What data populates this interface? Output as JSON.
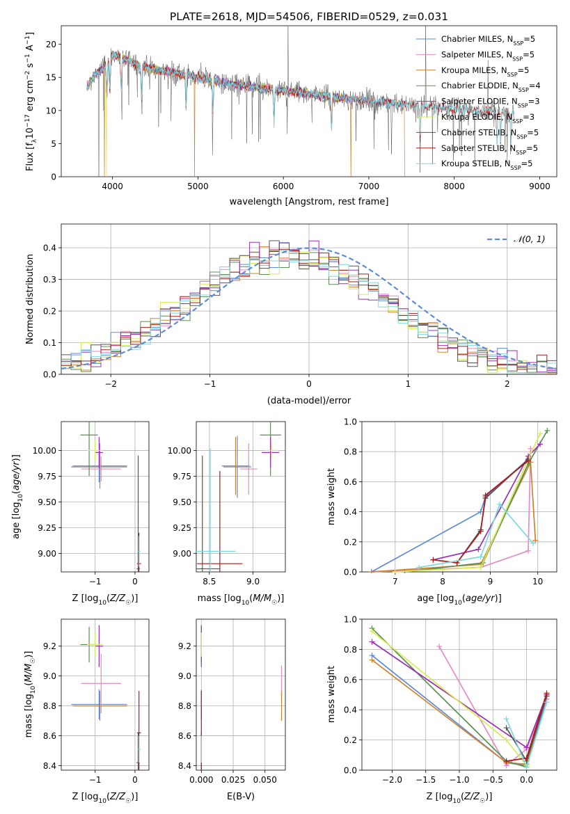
{
  "colors": {
    "Chabrier MILES": "#5b8bd9",
    "Salpeter MILES": "#e78ac3",
    "Kroupa MILES": "#d4822a",
    "Chabrier ELODIE": "#5a8f52",
    "Salpeter ELODIE": "#9a2fb5",
    "Kroupa ELODIE": "#d6ec52",
    "Chabrier STELIB": "#555555",
    "Salpeter STELIB": "#b01818",
    "Kroupa STELIB": "#7fd8dd"
  },
  "chart_data": [
    {
      "id": "spectrum",
      "type": "line",
      "title": "PLATE=2618, MJD=54506, FIBERID=0529, z=0.031",
      "xlabel": "wavelength [Angstrom, rest frame]",
      "ylabel": "Flux [f",
      "ylabel_full": "Flux [fλ10⁻¹⁷ erg cm⁻² s⁻¹ A⁻¹]",
      "xlim": [
        3400,
        9200
      ],
      "ylim": [
        0,
        22.8
      ],
      "xticks": [
        4000,
        5000,
        6000,
        7000,
        8000,
        9000
      ],
      "yticks": [
        0,
        5,
        10,
        15,
        20
      ],
      "legend_position": "top-right",
      "legend": [
        {
          "name": "Chabrier MILES, N",
          "sub": "SSP",
          "suffix": "=5",
          "model": "Chabrier MILES"
        },
        {
          "name": "Salpeter MILES, N",
          "sub": "SSP",
          "suffix": "=5",
          "model": "Salpeter MILES"
        },
        {
          "name": "Kroupa MILES, N",
          "sub": "SSP",
          "suffix": "=5",
          "model": "Kroupa MILES"
        },
        {
          "name": "Chabrier ELODIE, N",
          "sub": "SSP",
          "suffix": "=4",
          "model": "Chabrier ELODIE"
        },
        {
          "name": "Salpeter ELODIE, N",
          "sub": "SSP",
          "suffix": "=3",
          "model": "Salpeter ELODIE"
        },
        {
          "name": "Kroupa ELODIE, N",
          "sub": "SSP",
          "suffix": "=3",
          "model": "Kroupa ELODIE"
        },
        {
          "name": "Chabrier STELIB, N",
          "sub": "SSP",
          "suffix": "=5",
          "model": "Chabrier STELIB"
        },
        {
          "name": "Salpeter STELIB, N",
          "sub": "SSP",
          "suffix": "=5",
          "model": "Salpeter STELIB"
        },
        {
          "name": "Kroupa STELIB, N",
          "sub": "SSP",
          "suffix": "=5",
          "model": "Kroupa STELIB"
        }
      ],
      "continuum": {
        "x": [
          3700,
          3800,
          3900,
          4000,
          4100,
          4300,
          4500,
          4800,
          5000,
          5300,
          5600,
          6000,
          6300,
          6600,
          7000,
          7400,
          7800,
          8200,
          8600,
          9000,
          9200
        ],
        "y": [
          13.5,
          15.5,
          16.5,
          18.5,
          18.0,
          16.8,
          16.2,
          15.5,
          15.0,
          14.2,
          13.6,
          13.0,
          12.5,
          12.0,
          11.5,
          11.0,
          10.5,
          10.0,
          9.8,
          9.5,
          9.3
        ]
      },
      "absorption_lines": [
        3934,
        3969,
        4102,
        4340,
        4861,
        5175,
        5890,
        6563,
        7600,
        8500,
        8542,
        8662
      ],
      "mask_gaps": [
        {
          "x": 3905,
          "model": "Kroupa MILES"
        },
        {
          "x": 4960,
          "model": "Kroupa MILES"
        },
        {
          "x": 6790,
          "model": "Kroupa MILES"
        },
        {
          "x": 7420,
          "model": "Kroupa MILES"
        },
        {
          "x": 3840,
          "model": "Chabrier STELIB"
        },
        {
          "x": 3930,
          "model": "Kroupa ELODIE"
        }
      ]
    },
    {
      "id": "residuals",
      "type": "histogram",
      "xlabel": "(data-model)/error",
      "ylabel": "Normed distribution",
      "xlim": [
        -2.5,
        2.5
      ],
      "ylim": [
        0,
        0.475
      ],
      "xticks": [
        -2,
        -1,
        0,
        1,
        2
      ],
      "yticks": [
        0.0,
        0.1,
        0.2,
        0.3,
        0.4
      ],
      "legend_position": "top-right",
      "normal_curve_label": "𝒩(0, 1)",
      "bin_edges_start": -2.5,
      "bin_width": 0.1
    },
    {
      "id": "age-vs-Z",
      "type": "scatter",
      "xlabel": "Z [log",
      "xlabel_full": "Z [log10(Z/Z☉)]",
      "ylabel_full": "age  [log10(age/yr)]",
      "xlim": [
        -1.85,
        0.35
      ],
      "ylim": [
        8.82,
        10.28
      ],
      "xticks": [
        -1,
        0
      ],
      "yticks": [
        9.0,
        9.25,
        9.5,
        9.75,
        10.0
      ]
    },
    {
      "id": "age-vs-mass",
      "type": "scatter",
      "xlabel_full": "mass [log10(M/M☉)]",
      "xlim": [
        8.35,
        9.37
      ],
      "ylim": [
        8.82,
        10.28
      ],
      "xticks": [
        8.5,
        9.0
      ],
      "yticks": [
        9.0,
        9.25,
        9.5,
        9.75,
        10.0
      ]
    },
    {
      "id": "massweight-vs-age",
      "type": "line",
      "xlabel_full": "age  [log10(age/yr)]",
      "ylabel": "mass weight",
      "xlim": [
        6.3,
        10.4
      ],
      "ylim": [
        0,
        1.0
      ],
      "xticks": [
        7,
        8,
        9,
        10
      ],
      "yticks": [
        0.0,
        0.2,
        0.4,
        0.6,
        0.8,
        1.0
      ],
      "series": [
        {
          "model": "Chabrier MILES",
          "x": [
            6.5,
            8.8,
            8.9,
            9.8
          ],
          "y": [
            0.0,
            0.4,
            0.5,
            0.75
          ]
        },
        {
          "model": "Salpeter MILES",
          "x": [
            6.5,
            8.8,
            9.8,
            9.85
          ],
          "y": [
            0.0,
            0.03,
            0.14,
            0.82
          ]
        },
        {
          "model": "Kroupa MILES",
          "x": [
            6.5,
            8.8,
            9.85,
            9.95
          ],
          "y": [
            0.0,
            0.05,
            0.73,
            0.21
          ]
        },
        {
          "model": "Chabrier ELODIE",
          "x": [
            7.2,
            8.85,
            9.8,
            10.2
          ],
          "y": [
            0.0,
            0.06,
            0.72,
            0.94
          ]
        },
        {
          "model": "Salpeter ELODIE",
          "x": [
            7.8,
            8.75,
            9.8,
            10.05
          ],
          "y": [
            0.08,
            0.15,
            0.77,
            0.85
          ]
        },
        {
          "model": "Kroupa ELODIE",
          "x": [
            7.0,
            8.8,
            9.8,
            10.05
          ],
          "y": [
            0.0,
            0.03,
            0.75,
            0.92
          ]
        },
        {
          "model": "Chabrier STELIB",
          "x": [
            8.3,
            8.8,
            8.9,
            9.8
          ],
          "y": [
            0.06,
            0.28,
            0.49,
            0.75
          ]
        },
        {
          "model": "Salpeter STELIB",
          "x": [
            7.8,
            8.3,
            8.8,
            8.9,
            9.8
          ],
          "y": [
            0.08,
            0.06,
            0.27,
            0.51,
            0.74
          ]
        },
        {
          "model": "Kroupa STELIB",
          "x": [
            7.5,
            8.8,
            9.2,
            9.9
          ],
          "y": [
            0.03,
            0.1,
            0.45,
            0.19
          ]
        }
      ]
    },
    {
      "id": "mass-vs-Z",
      "type": "scatter",
      "xlabel_full": "Z [log10(Z/Z☉)]",
      "ylabel_full": "mass [log10(M/M☉)]",
      "xlim": [
        -1.85,
        0.35
      ],
      "ylim": [
        8.37,
        9.38
      ],
      "xticks": [
        -1,
        0
      ],
      "yticks": [
        8.4,
        8.6,
        8.8,
        9.0,
        9.2
      ]
    },
    {
      "id": "mass-vs-EBV",
      "type": "scatter",
      "xlabel": "E(B-V)",
      "xlim": [
        -0.004,
        0.066
      ],
      "ylim": [
        8.37,
        9.38
      ],
      "xticks": [
        0.0,
        0.025,
        0.05
      ],
      "xticklabels": [
        "0.000",
        "0.025",
        "0.050"
      ],
      "yticks": [
        8.4,
        8.6,
        8.8,
        9.0,
        9.2
      ]
    },
    {
      "id": "massweight-vs-Z",
      "type": "line",
      "xlabel_full": "Z [log10(Z/Z☉)]",
      "ylabel": "mass weight",
      "xlim": [
        -2.45,
        0.45
      ],
      "ylim": [
        0,
        1.0
      ],
      "xticks": [
        -2.0,
        -1.5,
        -1.0,
        -0.5,
        0.0
      ],
      "yticks": [
        0.0,
        0.2,
        0.4,
        0.6,
        0.8,
        1.0
      ],
      "series": [
        {
          "model": "Chabrier MILES",
          "x": [
            -2.3,
            -0.3,
            0.0,
            0.3
          ],
          "y": [
            0.76,
            0.05,
            0.03,
            0.47
          ]
        },
        {
          "model": "Salpeter MILES",
          "x": [
            -1.3,
            -0.3,
            0.0,
            0.3
          ],
          "y": [
            0.82,
            0.03,
            0.14,
            0.47
          ]
        },
        {
          "model": "Kroupa MILES",
          "x": [
            -2.3,
            -0.3,
            0.0,
            0.3
          ],
          "y": [
            0.73,
            0.05,
            0.04,
            0.5
          ]
        },
        {
          "model": "Chabrier ELODIE",
          "x": [
            -2.3,
            -0.3,
            0.0
          ],
          "y": [
            0.94,
            0.06,
            0.02
          ]
        },
        {
          "model": "Salpeter ELODIE",
          "x": [
            -2.3,
            0.0,
            0.3
          ],
          "y": [
            0.85,
            0.15,
            0.5
          ]
        },
        {
          "model": "Kroupa ELODIE",
          "x": [
            -2.3,
            -0.3,
            0.0
          ],
          "y": [
            0.92,
            0.2,
            0.03
          ]
        },
        {
          "model": "Chabrier STELIB",
          "x": [
            -0.3,
            0.0,
            0.3
          ],
          "y": [
            0.28,
            0.06,
            0.49
          ]
        },
        {
          "model": "Salpeter STELIB",
          "x": [
            -0.3,
            0.0,
            0.3
          ],
          "y": [
            0.06,
            0.08,
            0.51
          ]
        },
        {
          "model": "Kroupa STELIB",
          "x": [
            -0.3,
            0.0,
            0.3
          ],
          "y": [
            0.34,
            0.02,
            0.45
          ]
        }
      ]
    }
  ],
  "errorbars": {
    "ageZ": [
      {
        "model": "Chabrier MILES",
        "x": -0.9,
        "xe": 0.7,
        "y": 9.84,
        "ye": 0.15
      },
      {
        "model": "Salpeter MILES",
        "x": -0.85,
        "xe": 0.5,
        "y": 9.82,
        "ye": 0.12
      },
      {
        "model": "Kroupa MILES",
        "x": -0.88,
        "xe": 0.68,
        "y": 9.85,
        "ye": 0.22
      },
      {
        "model": "Chabrier ELODIE",
        "x": -1.15,
        "xe": 0.22,
        "y": 10.15,
        "ye": 0.4
      },
      {
        "model": "Salpeter ELODIE",
        "x": -0.9,
        "xe": 0.1,
        "y": 9.98,
        "ye": 0.15
      },
      {
        "model": "Kroupa ELODIE",
        "x": -1.0,
        "xe": 0.2,
        "y": 10.0,
        "ye": 0.1
      },
      {
        "model": "Chabrier STELIB",
        "x": 0.08,
        "xe": 0.04,
        "y": 8.85,
        "ye": 1.1
      },
      {
        "model": "Salpeter STELIB",
        "x": 0.1,
        "xe": 0.05,
        "y": 8.9,
        "ye": 0.3
      },
      {
        "model": "Kroupa STELIB",
        "x": 0.1,
        "xe": 0.04,
        "y": 9.02,
        "ye": 0.15
      }
    ],
    "ageMass": [
      {
        "model": "Chabrier MILES",
        "x": 8.82,
        "xe": 0.16,
        "y": 9.84,
        "ye": 0.3
      },
      {
        "model": "Salpeter MILES",
        "x": 8.95,
        "xe": 0.1,
        "y": 9.82,
        "ye": 0.25
      },
      {
        "model": "Kroupa MILES",
        "x": 8.8,
        "xe": 0.16,
        "y": 9.85,
        "ye": 0.28
      },
      {
        "model": "Chabrier ELODIE",
        "x": 9.2,
        "xe": 0.12,
        "y": 10.15,
        "ye": 0.4
      },
      {
        "model": "Salpeter ELODIE",
        "x": 9.2,
        "xe": 0.1,
        "y": 9.98,
        "ye": 0.15
      },
      {
        "model": "Kroupa ELODIE",
        "x": 9.21,
        "xe": 0.08,
        "y": 10.0,
        "ye": 0.08
      },
      {
        "model": "Chabrier STELIB",
        "x": 8.42,
        "xe": 0.2,
        "y": 8.85,
        "ye": 1.1
      },
      {
        "model": "Salpeter STELIB",
        "x": 8.62,
        "xe": 0.26,
        "y": 8.9,
        "ye": 0.9
      },
      {
        "model": "Kroupa STELIB",
        "x": 8.51,
        "xe": 0.29,
        "y": 9.02,
        "ye": 1.0
      }
    ],
    "massZ": [
      {
        "model": "Chabrier MILES",
        "x": -0.9,
        "xe": 0.7,
        "y": 8.81,
        "ye": 0.1
      },
      {
        "model": "Salpeter MILES",
        "x": -0.85,
        "xe": 0.5,
        "y": 8.95,
        "ye": 0.2
      },
      {
        "model": "Kroupa MILES",
        "x": -0.88,
        "xe": 0.68,
        "y": 8.8,
        "ye": 0.1
      },
      {
        "model": "Chabrier ELODIE",
        "x": -1.15,
        "xe": 0.22,
        "y": 9.21,
        "ye": 0.12
      },
      {
        "model": "Salpeter ELODIE",
        "x": -0.9,
        "xe": 0.1,
        "y": 9.2,
        "ye": 0.14
      },
      {
        "model": "Kroupa ELODIE",
        "x": -1.0,
        "xe": 0.2,
        "y": 9.21,
        "ye": 0.08
      },
      {
        "model": "Chabrier STELIB",
        "x": 0.08,
        "xe": 0.04,
        "y": 8.42,
        "ye": 0.2
      },
      {
        "model": "Salpeter STELIB",
        "x": 0.1,
        "xe": 0.05,
        "y": 8.62,
        "ye": 0.28
      },
      {
        "model": "Kroupa STELIB",
        "x": 0.1,
        "xe": 0.04,
        "y": 8.51,
        "ye": 0.09
      }
    ],
    "massEBV": [
      {
        "model": "Chabrier MILES",
        "x": 0.0,
        "xe": 0.0,
        "y": 8.81,
        "ye": 0.1
      },
      {
        "model": "Salpeter MILES",
        "x": 0.063,
        "xe": 0.0,
        "y": 8.95,
        "ye": 0.12
      },
      {
        "model": "Kroupa MILES",
        "x": 0.063,
        "xe": 0.0,
        "y": 8.8,
        "ye": 0.1
      },
      {
        "model": "Chabrier ELODIE",
        "x": 0.0,
        "xe": 0.0,
        "y": 9.21,
        "ye": 0.12
      },
      {
        "model": "Salpeter ELODIE",
        "x": 0.0,
        "xe": 0.0,
        "y": 9.2,
        "ye": 0.14
      },
      {
        "model": "Kroupa ELODIE",
        "x": 0.0,
        "xe": 0.0,
        "y": 9.21,
        "ye": 0.08
      },
      {
        "model": "Chabrier STELIB",
        "x": 0.0,
        "xe": 0.0,
        "y": 8.42,
        "ye": 0.2
      },
      {
        "model": "Salpeter STELIB",
        "x": 0.0,
        "xe": 0.0,
        "y": 8.62,
        "ye": 0.28
      },
      {
        "model": "Kroupa STELIB",
        "x": 0.0,
        "xe": 0.0,
        "y": 8.51,
        "ye": 0.09
      }
    ]
  }
}
